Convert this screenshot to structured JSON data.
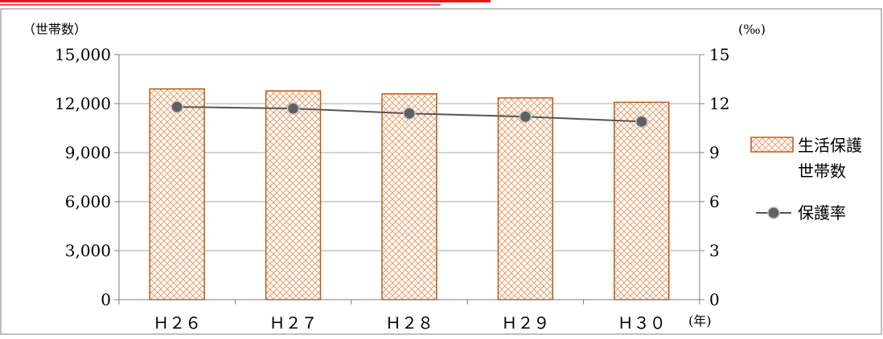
{
  "chart_data": {
    "type": "bar",
    "categories": [
      "Ｈ２６",
      "Ｈ２７",
      "Ｈ２８",
      "Ｈ２９",
      "Ｈ３０"
    ],
    "x_unit": "(年)",
    "y_left": {
      "unit": "（世帯数）",
      "ylim": [
        0,
        15000
      ],
      "ticks": [
        0,
        3000,
        6000,
        9000,
        12000,
        15000
      ],
      "tick_labels": [
        "0",
        "3,000",
        "6,000",
        "9,000",
        "12,000",
        "15,000"
      ]
    },
    "y_right": {
      "unit": "(‰)",
      "ylim": [
        0,
        15
      ],
      "ticks": [
        0,
        3,
        6,
        9,
        12,
        15
      ],
      "tick_labels": [
        "0",
        "3",
        "6",
        "9",
        "12",
        "15"
      ]
    },
    "series": [
      {
        "name": "生活保護世帯数",
        "type": "bar",
        "axis": "left",
        "values": [
          12900,
          12780,
          12600,
          12350,
          12080
        ]
      },
      {
        "name": "保護率",
        "type": "line",
        "axis": "right",
        "values": [
          11.8,
          11.7,
          11.4,
          11.2,
          10.9
        ]
      }
    ],
    "legend": {
      "position": "right",
      "bar_label_lines": [
        "生活保護",
        "世帯数"
      ],
      "line_label": "保護率"
    },
    "grid": true,
    "colors": {
      "bar_edge": "#b85c1a",
      "bar_hatch": "#e8a271",
      "line": "#555555",
      "marker": "#606060",
      "grid": "#a6a6a6",
      "axis": "#7f7f7f",
      "frame": "#7f7f7f",
      "top_accent": "#e0191e"
    }
  }
}
